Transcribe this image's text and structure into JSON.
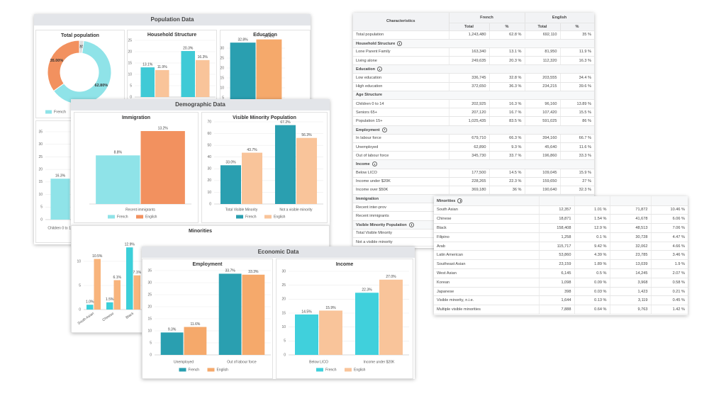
{
  "population_panel": {
    "title": "Population Data",
    "charts": [
      {
        "type": "pie",
        "title": "Total population",
        "values": [
          2.2,
          62.8,
          35
        ],
        "value_labels": [
          "2.20%",
          "62.80%",
          "35.00%"
        ],
        "colors": [
          "#dcdcdc",
          "#8fe3e8",
          "#f2915f"
        ],
        "legend": [
          {
            "name": "French",
            "color": "#8fe3e8"
          }
        ]
      },
      {
        "type": "bar",
        "title": "Household Structure",
        "categories": [
          null,
          null
        ],
        "series": [
          {
            "color": "#3fcad6",
            "values": [
              13.1,
              20.3
            ],
            "value_labels": [
              "13.1%",
              "20.3%"
            ]
          },
          {
            "color": "#f9c49a",
            "values": [
              11.9,
              16.3
            ],
            "value_labels": [
              "11.9%",
              "16.3%"
            ]
          }
        ],
        "ylim": [
          0,
          25
        ],
        "yticks": [
          0,
          5,
          10,
          15,
          20,
          25
        ],
        "grid": true
      },
      {
        "type": "bar",
        "title": "Education",
        "categories": [
          null
        ],
        "series": [
          {
            "color": "#2a9fb0",
            "values": [
              32.8
            ],
            "value_labels": [
              "32.8%"
            ]
          },
          {
            "color": "#f5a96b",
            "values": [
              34.4
            ],
            "value_labels": [
              "34.4%"
            ]
          }
        ],
        "ylim": [
          0,
          35
        ],
        "yticks": [
          0,
          5,
          10,
          15,
          20,
          25,
          30
        ],
        "grid": true
      },
      {
        "type": "bar",
        "categories": [
          "Children 0 to 14"
        ],
        "series": [
          {
            "color": "#8fe3e8",
            "values": [
              16.3
            ],
            "value_labels": [
              "16.3%"
            ]
          }
        ],
        "ylim": [
          0,
          35
        ],
        "yticks": [
          0,
          5,
          10,
          15,
          20,
          25,
          30,
          35
        ],
        "grid": true
      }
    ]
  },
  "demographic_panel": {
    "title": "Demographic Data",
    "charts": [
      {
        "type": "bar",
        "title": "Immigration",
        "categories": [
          "Recent immigrants"
        ],
        "series": [
          {
            "name": "French",
            "color": "#8fe3e8",
            "values": [
              8.8
            ],
            "value_labels": [
              "8.8%"
            ]
          },
          {
            "name": "English",
            "color": "#f2915f",
            "values": [
              13.2
            ],
            "value_labels": [
              "13.2%"
            ]
          }
        ],
        "ylim": [
          0,
          15
        ]
      },
      {
        "type": "bar",
        "title": "Visible Minority Population",
        "categories": [
          "Total Visible Minority",
          "Not a visible minority"
        ],
        "series": [
          {
            "name": "French",
            "color": "#2a9fb0",
            "values": [
              33.0,
              67.2
            ],
            "value_labels": [
              "33.0%",
              "67.2%"
            ]
          },
          {
            "name": "English",
            "color": "#f9c49a",
            "values": [
              43.7,
              56.3
            ],
            "value_labels": [
              "43.7%",
              "56.3%"
            ]
          }
        ],
        "ylim": [
          0,
          70
        ],
        "yticks": [
          0,
          10,
          20,
          30,
          40,
          50,
          60,
          70
        ],
        "grid": true
      }
    ]
  },
  "minorities_panel": {
    "chart": {
      "type": "bar",
      "title": "Minorities",
      "categories": [
        "South Asian",
        "Chinese",
        "Black"
      ],
      "series": [
        {
          "color": "#3ccfd9",
          "values": [
            1.0,
            1.5,
            12.9
          ],
          "value_labels": [
            "1.0%",
            "1.5%",
            "12.9%"
          ]
        },
        {
          "color": "#f8b47c",
          "values": [
            10.5,
            6.1,
            7.1
          ],
          "value_labels": [
            "10.5%",
            "6.1%",
            "7.1%"
          ]
        }
      ],
      "ylim": [
        0,
        15
      ],
      "yticks": [
        0,
        5,
        10
      ],
      "grid": true
    }
  },
  "economic_panel": {
    "title": "Economic Data",
    "charts": [
      {
        "type": "bar",
        "title": "Employment",
        "categories": [
          "Unemployed",
          "Out of labour force"
        ],
        "series": [
          {
            "name": "French",
            "color": "#2a9fb0",
            "values": [
              9.3,
              33.7
            ],
            "value_labels": [
              "9.3%",
              "33.7%"
            ]
          },
          {
            "name": "English",
            "color": "#f5a96b",
            "values": [
              11.6,
              33.3
            ],
            "value_labels": [
              "11.6%",
              "33.3%"
            ]
          }
        ],
        "ylim": [
          0,
          35
        ],
        "yticks": [
          0,
          5,
          10,
          15,
          20,
          25,
          30,
          35
        ],
        "grid": true
      },
      {
        "type": "bar",
        "title": "Income",
        "categories": [
          "Below LICO",
          "Income under $20K"
        ],
        "series": [
          {
            "name": "French",
            "color": "#40d0dc",
            "values": [
              14.5,
              22.3
            ],
            "value_labels": [
              "14.5%",
              "22.3%"
            ]
          },
          {
            "name": "English",
            "color": "#f9c49a",
            "values": [
              15.9,
              27.0
            ],
            "value_labels": [
              "15.9%",
              "27.0%"
            ]
          }
        ],
        "ylim": [
          0,
          30
        ],
        "yticks": [
          0,
          5,
          10,
          15,
          20,
          25,
          30
        ],
        "grid": true
      }
    ]
  },
  "characteristics_table": {
    "header": [
      "Characteristics",
      "French",
      "English"
    ],
    "subheader": [
      "Total",
      "%",
      "Total",
      "%"
    ],
    "rows": [
      [
        "Total population",
        "1,243,480",
        "62.8 %",
        "692,110",
        "35 %"
      ],
      {
        "section": "Household Structure",
        "info": true
      },
      [
        "Lone Parent Family",
        "163,340",
        "13.1 %",
        "81,950",
        "11.9 %"
      ],
      [
        "Living alone",
        "249,635",
        "20.3 %",
        "112,320",
        "16.3 %"
      ],
      {
        "section": "Education",
        "info": true
      },
      [
        "Low education",
        "336,745",
        "32.8 %",
        "203,555",
        "34.4 %"
      ],
      [
        "High education",
        "372,650",
        "36.3 %",
        "234,215",
        "39.6 %"
      ],
      {
        "section": "Age Structure",
        "info": false
      },
      [
        "Children 0 to 14",
        "202,925",
        "16.3 %",
        "96,160",
        "13.89 %"
      ],
      [
        "Seniors 65+",
        "207,120",
        "16.7 %",
        "107,420",
        "15.5 %"
      ],
      [
        "Population 15+",
        "1,025,435",
        "83.5 %",
        "591,025",
        "86 %"
      ],
      {
        "section": "Employment",
        "info": true
      },
      [
        "In labour force",
        "679,710",
        "66.3 %",
        "394,160",
        "66.7 %"
      ],
      [
        "Unemployed",
        "62,890",
        "9.3 %",
        "45,640",
        "11.6 %"
      ],
      [
        "Out of labour force",
        "345,730",
        "33.7 %",
        "196,860",
        "33.3 %"
      ],
      {
        "section": "Income",
        "info": true
      },
      [
        "Below LICO",
        "177,500",
        "14.5 %",
        "109,045",
        "15.9 %"
      ],
      [
        "Income under $20K",
        "228,265",
        "22.3 %",
        "159,650",
        "27 %"
      ],
      [
        "Income over $50K",
        "369,180",
        "36 %",
        "190,640",
        "32.3 %"
      ],
      {
        "section": "Immigration",
        "info": false
      },
      [
        "Recent inter-prov"
      ],
      [
        "Recent immigrants"
      ],
      {
        "section": "Visible Minority Population",
        "info": true
      },
      [
        "Total Visible Minority"
      ],
      [
        "Not a visible minority"
      ]
    ]
  },
  "minorities_table": {
    "title": "Minorities",
    "info": true,
    "rows": [
      [
        "South Asian",
        "12,357",
        "1.01 %",
        "71,872",
        "10.46 %"
      ],
      [
        "Chinese",
        "18,871",
        "1.54 %",
        "41,678",
        "6.06 %"
      ],
      [
        "Black",
        "158,408",
        "12.9 %",
        "48,513",
        "7.06 %"
      ],
      [
        "Filipino",
        "1,258",
        "0.1 %",
        "30,728",
        "4.47 %"
      ],
      [
        "Arab",
        "115,717",
        "9.42 %",
        "32,062",
        "4.66 %"
      ],
      [
        "Latin American",
        "53,860",
        "4.39 %",
        "23,785",
        "3.46 %"
      ],
      [
        "Southeast Asian",
        "23,159",
        "1.89 %",
        "13,039",
        "1.9 %"
      ],
      [
        "West Asian",
        "6,145",
        "0.5 %",
        "14,245",
        "2.07 %"
      ],
      [
        "Korean",
        "1,098",
        "0.09 %",
        "3,968",
        "0.58 %"
      ],
      [
        "Japanese",
        "398",
        "0.03 %",
        "1,423",
        "0.21 %"
      ],
      [
        "Visible minority, n.i.e.",
        "1,644",
        "0.13 %",
        "3,119",
        "0.45 %"
      ],
      [
        "Multiple visible minorities",
        "7,888",
        "0.64 %",
        "9,763",
        "1.42 %"
      ]
    ]
  }
}
